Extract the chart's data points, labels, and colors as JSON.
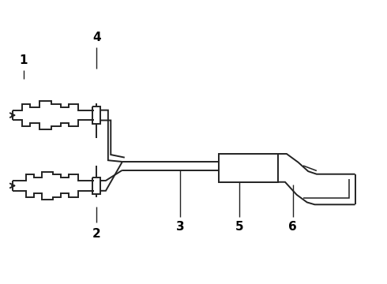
{
  "background_color": "#ffffff",
  "line_color": "#222222",
  "line_width": 1.4,
  "label_fontsize": 11,
  "label_fontweight": "bold"
}
